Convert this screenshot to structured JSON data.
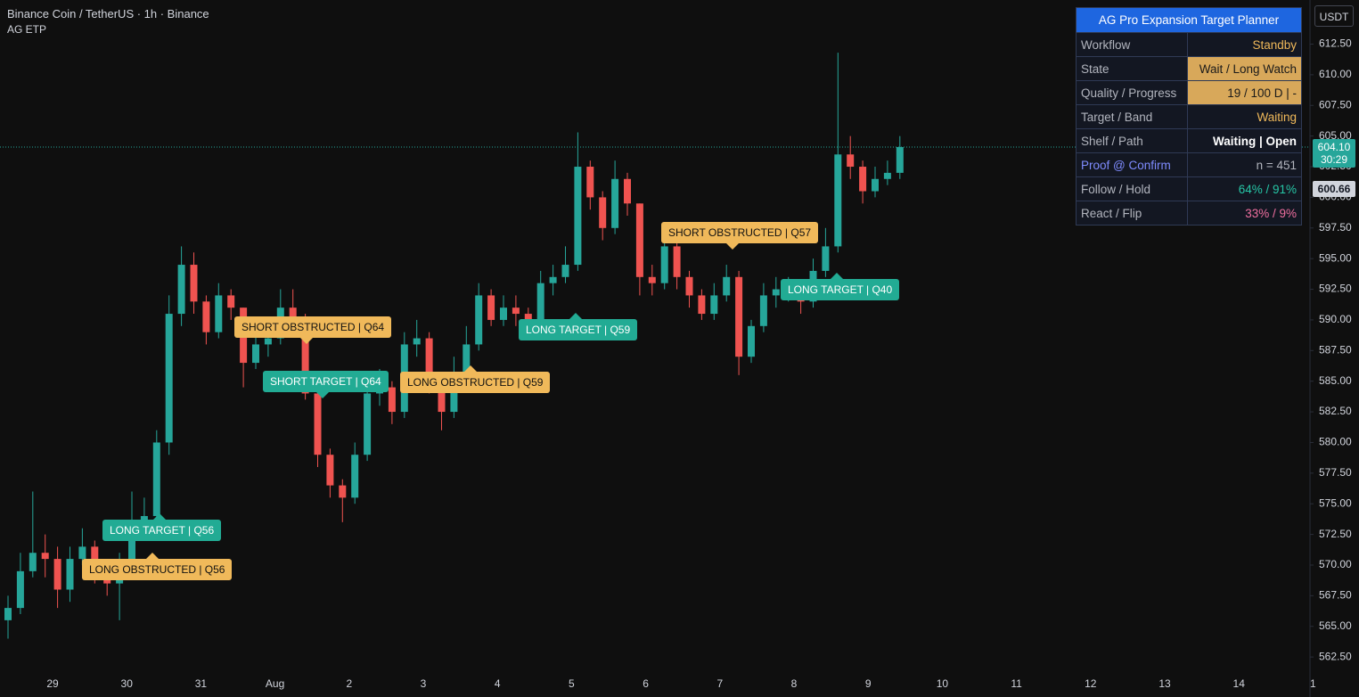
{
  "chart_data": {
    "type": "candlestick",
    "title": "Binance Coin / TetherUS · 1h · Binance",
    "subtitle": "AG ETP",
    "up_color": "#26a69a",
    "down_color": "#ef5350",
    "open": [
      565.5,
      566.5,
      569.5,
      571,
      570.5,
      568,
      570.5,
      571.5,
      569.5,
      568.5,
      569.5,
      573.5,
      574,
      580,
      590.5,
      594.5,
      591.5,
      589,
      592,
      591,
      586.5,
      588,
      588.5,
      591,
      590,
      584,
      579,
      576.5,
      575.5,
      579,
      584,
      584.5,
      582.5,
      588,
      588.5,
      585,
      582.5,
      585.5,
      588,
      592,
      590,
      591,
      590.5,
      589.5,
      593,
      593.5,
      594.5,
      602.5,
      600,
      597.5,
      601.5,
      599.5,
      593.5,
      593,
      596,
      593.5,
      592,
      590.5,
      592,
      593.5,
      587,
      589.5,
      592,
      592.5,
      592.5,
      591.5,
      594,
      596,
      603.5,
      602.5,
      600.5,
      601.5,
      602
    ],
    "high": [
      567.5,
      571,
      576,
      572.5,
      571.5,
      571.5,
      573,
      572,
      570.5,
      571,
      576,
      575.5,
      581,
      592,
      596,
      595.5,
      592,
      593,
      592.5,
      591,
      589,
      590,
      592.5,
      592.5,
      590.5,
      584.5,
      579.5,
      577,
      580,
      585,
      586,
      585,
      589,
      590,
      589,
      585.5,
      587,
      589.5,
      593,
      592.5,
      592,
      592,
      591,
      594,
      594.5,
      596,
      605.3,
      603,
      600.5,
      603,
      602,
      599.5,
      594.5,
      597,
      596.5,
      594,
      592.5,
      593,
      594.5,
      594,
      590,
      593,
      593.5,
      593.5,
      593,
      595,
      597.5,
      611.8,
      605,
      603,
      602.5,
      603,
      605
    ],
    "low": [
      564,
      566,
      569,
      569,
      566.5,
      567,
      570,
      568.5,
      567.5,
      565.5,
      569,
      572,
      573.5,
      579,
      589.5,
      590.5,
      588,
      588.5,
      590,
      584.5,
      586,
      587,
      588,
      589,
      583.5,
      578,
      575.5,
      573.5,
      575,
      578.5,
      583,
      581.5,
      582,
      587,
      584,
      581,
      582,
      585,
      587.5,
      589.5,
      589.5,
      589.5,
      588.5,
      589,
      592,
      593,
      594,
      599,
      596.5,
      597,
      598.5,
      592,
      592,
      592.5,
      592.5,
      591,
      590,
      590,
      591.5,
      585.5,
      586.5,
      589,
      591,
      591.5,
      590.5,
      591,
      593.5,
      595.5,
      601.5,
      599.5,
      600,
      601,
      601.5
    ],
    "close": [
      566.5,
      569.5,
      571,
      570.5,
      568,
      570.5,
      571.5,
      569.5,
      568.5,
      569.5,
      573.5,
      574,
      580,
      590.5,
      594.5,
      591.5,
      589,
      592,
      591,
      586.5,
      588,
      588.5,
      591,
      590,
      584,
      579,
      576.5,
      575.5,
      579,
      584,
      584.5,
      582.5,
      588,
      588.5,
      585,
      582.5,
      585.5,
      588,
      592,
      590,
      591,
      590.5,
      589.5,
      593,
      593.5,
      594.5,
      602.5,
      600,
      597.5,
      601.5,
      599.5,
      593.5,
      593,
      596,
      593.5,
      592,
      590.5,
      592,
      593.5,
      587,
      589.5,
      592,
      592.5,
      592.5,
      591.5,
      594,
      596,
      603.5,
      602.5,
      600.5,
      601.5,
      602,
      604.1
    ],
    "ylim": [
      561.2,
      616.1
    ],
    "yticks": [
      {
        "value": 562.5,
        "label": "562.50"
      },
      {
        "value": 565,
        "label": "565.00"
      },
      {
        "value": 567.5,
        "label": "567.50"
      },
      {
        "value": 570,
        "label": "570.00"
      },
      {
        "value": 572.5,
        "label": "572.50"
      },
      {
        "value": 575,
        "label": "575.00"
      },
      {
        "value": 577.5,
        "label": "577.50"
      },
      {
        "value": 580,
        "label": "580.00"
      },
      {
        "value": 582.5,
        "label": "582.50"
      },
      {
        "value": 585,
        "label": "585.00"
      },
      {
        "value": 587.5,
        "label": "587.50"
      },
      {
        "value": 590,
        "label": "590.00"
      },
      {
        "value": 592.5,
        "label": "592.50"
      },
      {
        "value": 595,
        "label": "595.00"
      },
      {
        "value": 597.5,
        "label": "597.50"
      },
      {
        "value": 600,
        "label": "600.00"
      },
      {
        "value": 602.5,
        "label": "602.50"
      },
      {
        "value": 605,
        "label": "605.00"
      },
      {
        "value": 607.5,
        "label": "607.50"
      },
      {
        "value": 610,
        "label": "610.00"
      },
      {
        "value": 612.5,
        "label": "612.50"
      }
    ],
    "categories": [
      "29",
      "30",
      "31",
      "Aug",
      "2",
      "3",
      "4",
      "5",
      "6",
      "7",
      "8",
      "9",
      "10",
      "11",
      "12",
      "13",
      "14",
      "1"
    ],
    "last_price": {
      "value": 604.1,
      "label": "604.10"
    },
    "countdown": "30:29",
    "marker_price": {
      "value": 600.66,
      "label": "600.66"
    },
    "currency": "USDT",
    "annotations": [
      {
        "text": "LONG TARGET | Q56",
        "color": "#22ab94"
      },
      {
        "text": "LONG OBSTRUCTED | Q56",
        "color": "#f0b95a"
      },
      {
        "text": "SHORT OBSTRUCTED | Q64",
        "color": "#f0b95a"
      },
      {
        "text": "SHORT TARGET | Q64",
        "color": "#22ab94"
      },
      {
        "text": "LONG OBSTRUCTED | Q59",
        "color": "#f0b95a"
      },
      {
        "text": "LONG TARGET | Q59",
        "color": "#22ab94"
      },
      {
        "text": "SHORT OBSTRUCTED | Q57",
        "color": "#f0b95a"
      },
      {
        "text": "LONG TARGET | Q40",
        "color": "#22ab94"
      }
    ]
  },
  "planner": {
    "title": "AG Pro Expansion Target Planner",
    "rows": [
      {
        "label": "Workflow",
        "value": "Standby",
        "label_color": "#b2b5be",
        "value_color": "#f0b95a",
        "value_bg": "#131722"
      },
      {
        "label": "State",
        "value": "Wait / Long Watch",
        "label_color": "#b2b5be",
        "value_color": "#1a1a1a",
        "value_bg": "#d8a85a"
      },
      {
        "label": "Quality / Progress",
        "value": "19 / 100  D | -",
        "label_color": "#b2b5be",
        "value_color": "#1a1a1a",
        "value_bg": "#d8a85a"
      },
      {
        "label": "Target / Band",
        "value": "Waiting",
        "label_color": "#b2b5be",
        "value_color": "#f0b95a",
        "value_bg": "#131722"
      },
      {
        "label": "Shelf / Path",
        "value": "Waiting | Open",
        "label_color": "#b2b5be",
        "value_color": "#ffffff",
        "value_bg": "#131722"
      },
      {
        "label": "Proof @ Confirm",
        "value": "n = 451",
        "label_color": "#7f8cff",
        "value_color": "#b2b5be",
        "value_bg": "#131722"
      },
      {
        "label": "Follow / Hold",
        "value": "64% / 91%",
        "label_color": "#b2b5be",
        "value_color": "#26c6a6",
        "value_bg": "#131722"
      },
      {
        "label": "React / Flip",
        "value": "33% / 9%",
        "label_color": "#b2b5be",
        "value_color": "#f06fa0",
        "value_bg": "#131722"
      }
    ]
  }
}
